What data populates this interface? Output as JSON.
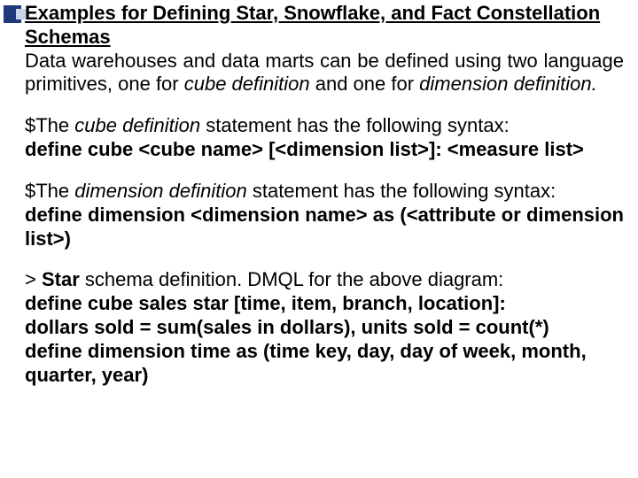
{
  "colors": {
    "text": "#000000",
    "background": "#ffffff",
    "accent_navy": "#1f3a7a",
    "accent_light": "#c9d3ea"
  },
  "typography": {
    "font_family": "Arial",
    "body_fontsize_pt": 17,
    "line_height": 1.22,
    "heading_weight": 700
  },
  "heading": "Examples for Defining Star, Snowflake, and Fact Constellation Schemas",
  "intro": {
    "lead": "Data warehouses and data marts can be defined using two language primitives, one for ",
    "em1": "cube definition",
    "mid": " and one for ",
    "em2": "dimension definition.",
    "tail": ""
  },
  "cube_stmt": {
    "prefix": "$The ",
    "em": "cube definition",
    "suffix": " statement has the following syntax:",
    "syntax": "define cube <cube name> [<dimension list>]: <measure list>"
  },
  "dim_stmt": {
    "prefix": "$The ",
    "em": "dimension definition",
    "suffix": " statement has the following syntax:",
    "syntax": "define dimension <dimension name> as (<attribute or dimension list>)"
  },
  "star": {
    "lead_prefix": "> ",
    "lead_bold": "Star",
    "lead_suffix": " schema definition. DMQL for the above diagram:",
    "l1": "define cube sales star [time, item, branch, location]:",
    "l2": "dollars sold = sum(sales in dollars), units sold = count(*)",
    "l3": "define dimension time as (time key, day, day of week, month, quarter, year)"
  }
}
